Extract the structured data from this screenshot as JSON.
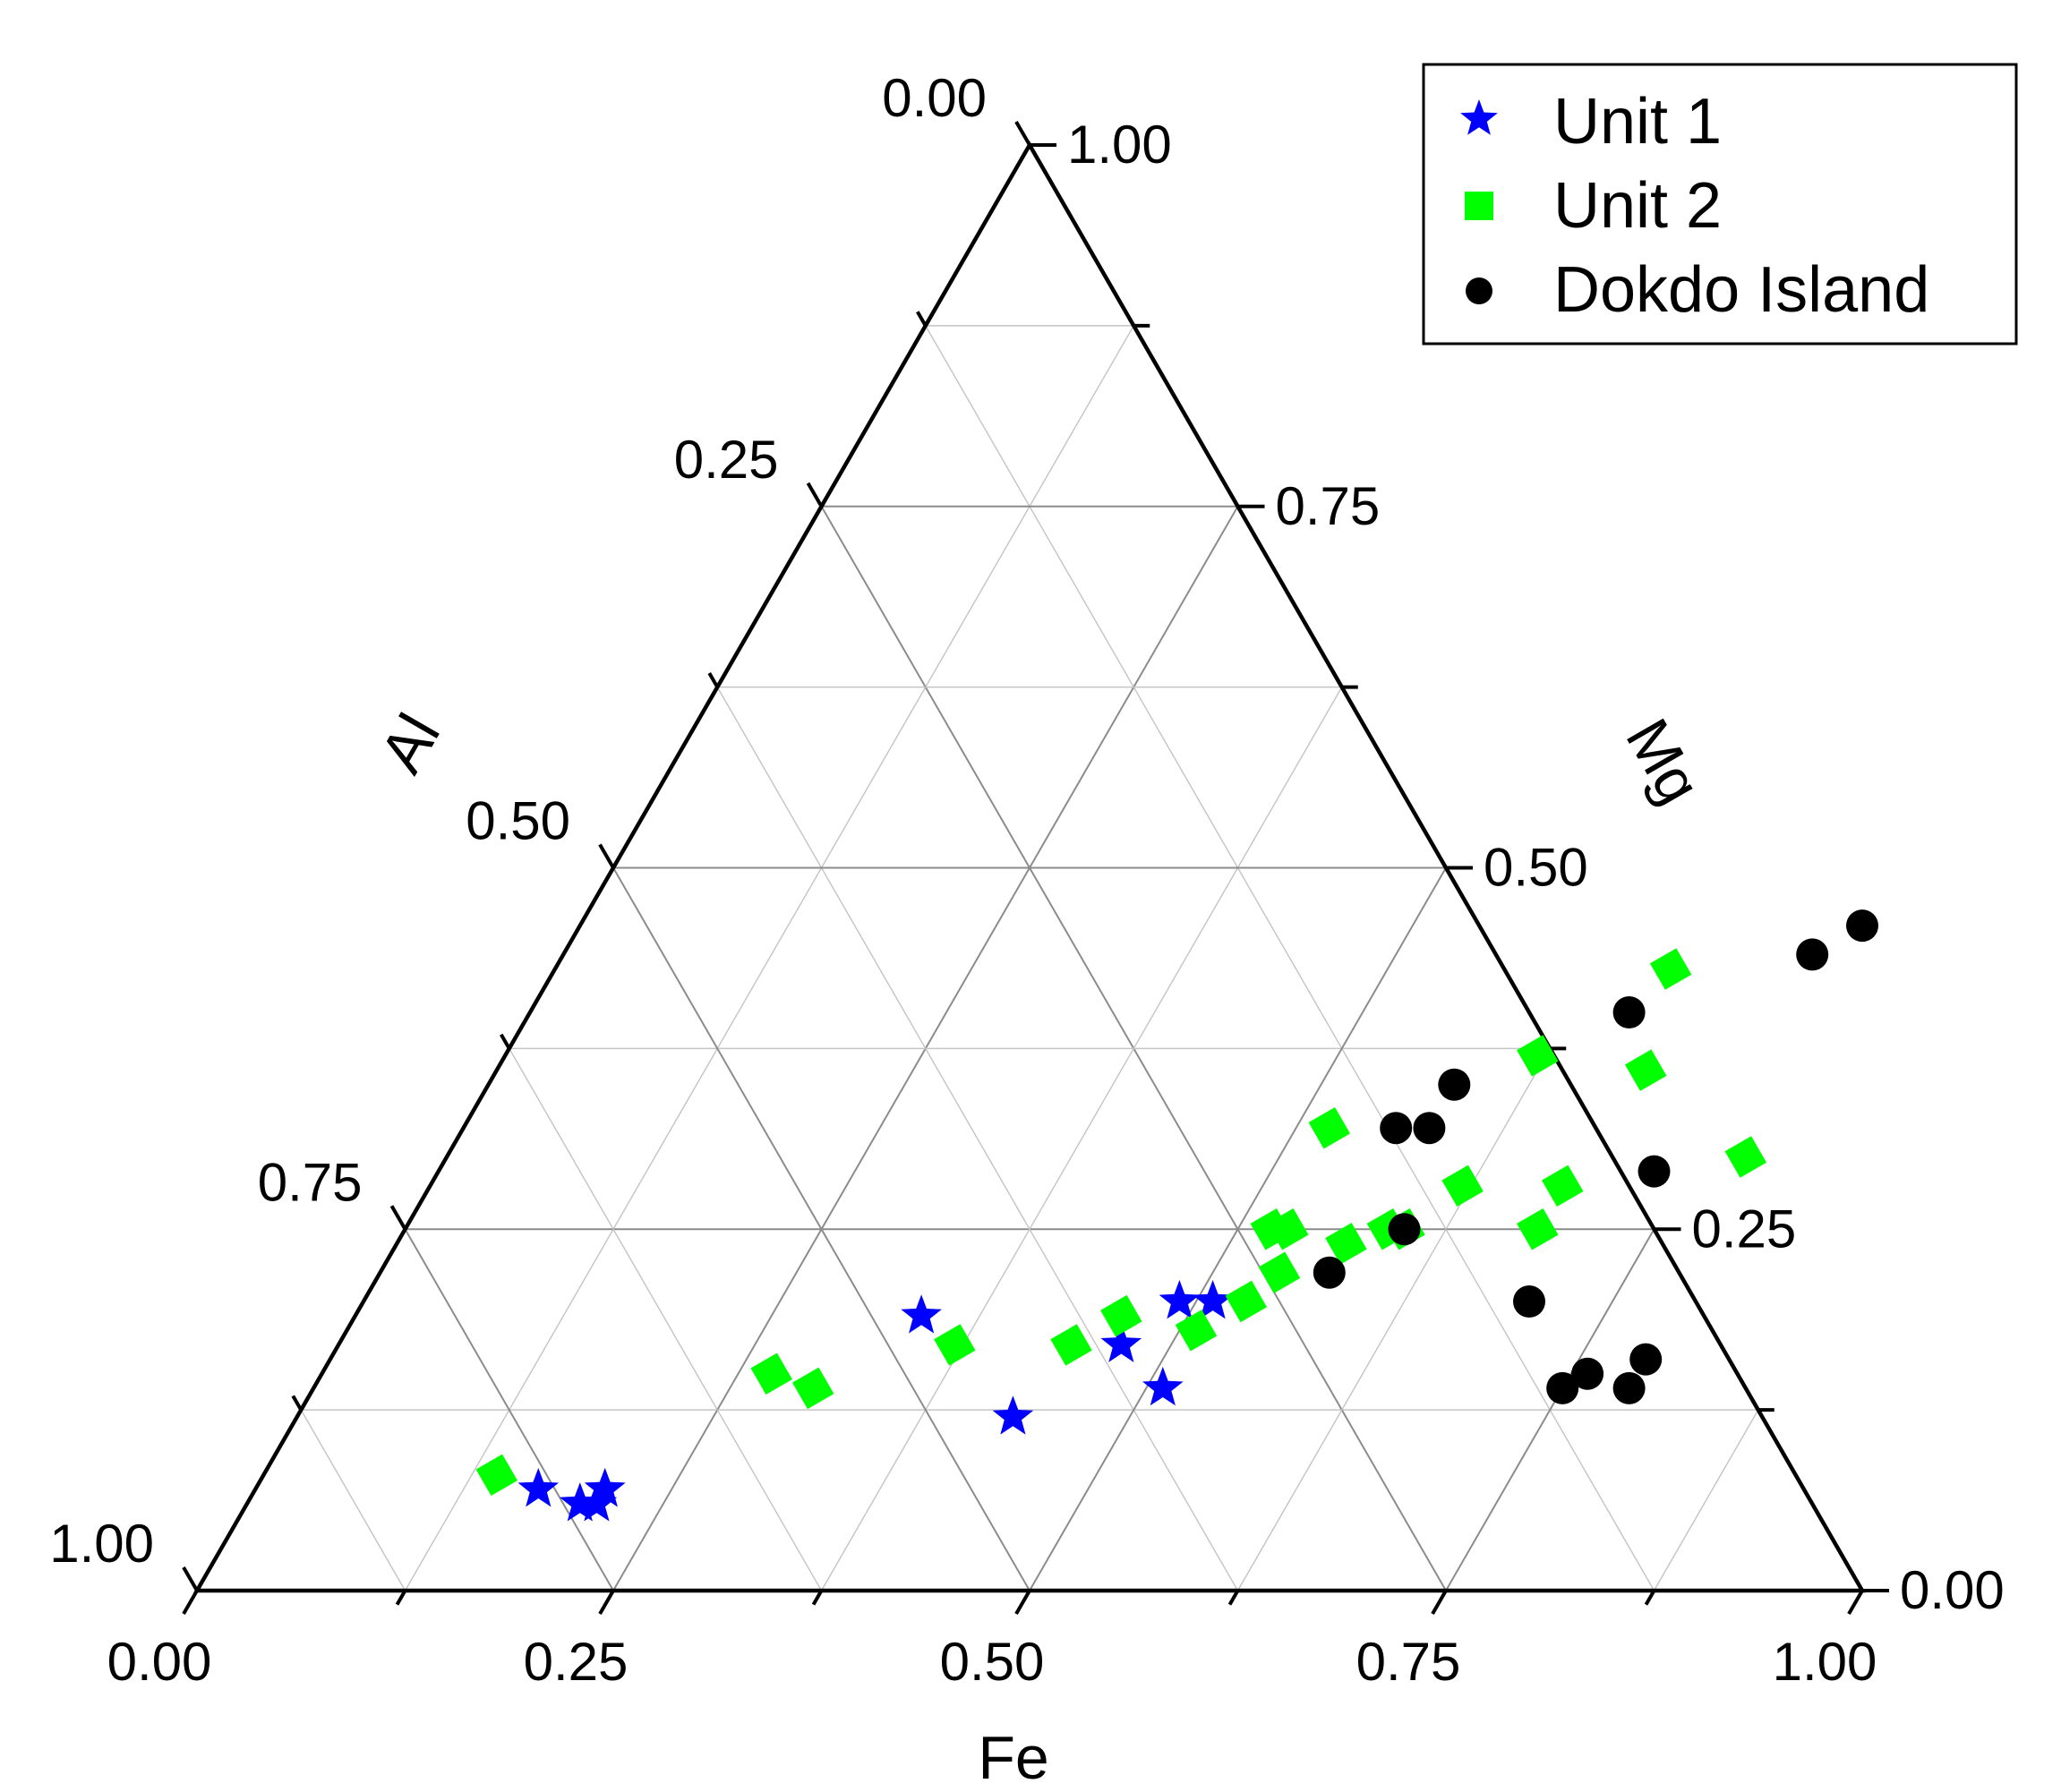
{
  "chart_data": {
    "type": "scatter",
    "subtype": "ternary",
    "grid": true,
    "legend_placement": "top-right",
    "axes": {
      "bottom": {
        "label": "Fe",
        "ticks": [
          "0.00",
          "0.25",
          "0.50",
          "0.75",
          "1.00"
        ]
      },
      "left": {
        "label": "Al",
        "ticks": [
          "0.00",
          "0.25",
          "0.50",
          "0.75",
          "1.00"
        ]
      },
      "right": {
        "label": "Mg",
        "ticks": [
          "1.00",
          "0.75",
          "0.50",
          "0.25",
          "0.00"
        ]
      }
    },
    "series": [
      {
        "name": "Unit 1",
        "marker": "star",
        "color": "#0000ff",
        "points": [
          {
            "Fe": 0.2,
            "Mg": 0.06,
            "Al": 0.74
          },
          {
            "Fe": 0.21,
            "Mg": 0.07,
            "Al": 0.72
          },
          {
            "Fe": 0.21,
            "Mg": 0.06,
            "Al": 0.73
          },
          {
            "Fe": 0.21,
            "Mg": 0.07,
            "Al": 0.72
          },
          {
            "Fe": 0.17,
            "Mg": 0.07,
            "Al": 0.76
          },
          {
            "Fe": 0.34,
            "Mg": 0.19,
            "Al": 0.47
          },
          {
            "Fe": 0.49,
            "Mg": 0.2,
            "Al": 0.31
          },
          {
            "Fe": 0.51,
            "Mg": 0.2,
            "Al": 0.29
          },
          {
            "Fe": 0.47,
            "Mg": 0.17,
            "Al": 0.36
          },
          {
            "Fe": 0.51,
            "Mg": 0.14,
            "Al": 0.35
          },
          {
            "Fe": 0.43,
            "Mg": 0.12,
            "Al": 0.45
          }
        ]
      },
      {
        "name": "Unit 2",
        "marker": "diamond",
        "color": "#00ff00",
        "points": [
          {
            "Fe": 0.14,
            "Mg": 0.08,
            "Al": 0.78
          },
          {
            "Fe": 0.27,
            "Mg": 0.15,
            "Al": 0.58
          },
          {
            "Fe": 0.3,
            "Mg": 0.14,
            "Al": 0.56
          },
          {
            "Fe": 0.37,
            "Mg": 0.17,
            "Al": 0.46
          },
          {
            "Fe": 0.44,
            "Mg": 0.17,
            "Al": 0.39
          },
          {
            "Fe": 0.46,
            "Mg": 0.19,
            "Al": 0.35
          },
          {
            "Fe": 0.51,
            "Mg": 0.18,
            "Al": 0.31
          },
          {
            "Fe": 0.53,
            "Mg": 0.2,
            "Al": 0.27
          },
          {
            "Fe": 0.54,
            "Mg": 0.22,
            "Al": 0.24
          },
          {
            "Fe": 0.52,
            "Mg": 0.25,
            "Al": 0.23
          },
          {
            "Fe": 0.53,
            "Mg": 0.25,
            "Al": 0.22
          },
          {
            "Fe": 0.57,
            "Mg": 0.24,
            "Al": 0.19
          },
          {
            "Fe": 0.59,
            "Mg": 0.25,
            "Al": 0.16
          },
          {
            "Fe": 0.6,
            "Mg": 0.25,
            "Al": 0.15
          },
          {
            "Fe": 0.62,
            "Mg": 0.28,
            "Al": 0.1
          },
          {
            "Fe": 0.52,
            "Mg": 0.32,
            "Al": 0.16
          },
          {
            "Fe": 0.68,
            "Mg": 0.25,
            "Al": 0.07
          },
          {
            "Fe": 0.68,
            "Mg": 0.28,
            "Al": 0.04
          },
          {
            "Fe": 0.78,
            "Mg": 0.3,
            "Al": -0.08
          },
          {
            "Fe": 0.62,
            "Mg": 0.37,
            "Al": 0.01
          },
          {
            "Fe": 0.69,
            "Mg": 0.36,
            "Al": -0.05
          },
          {
            "Fe": 0.67,
            "Mg": 0.43,
            "Al": -0.1
          }
        ]
      },
      {
        "name": "Dokdo Island",
        "marker": "circle",
        "color": "#000000",
        "points": [
          {
            "Fe": 0.77,
            "Mg": 0.46,
            "Al": -0.23
          },
          {
            "Fe": 0.75,
            "Mg": 0.44,
            "Al": -0.19
          },
          {
            "Fe": 0.66,
            "Mg": 0.4,
            "Al": -0.06
          },
          {
            "Fe": 0.58,
            "Mg": 0.35,
            "Al": 0.07
          },
          {
            "Fe": 0.56,
            "Mg": 0.32,
            "Al": 0.12
          },
          {
            "Fe": 0.58,
            "Mg": 0.32,
            "Al": 0.1
          },
          {
            "Fe": 0.73,
            "Mg": 0.29,
            "Al": -0.02
          },
          {
            "Fe": 0.6,
            "Mg": 0.25,
            "Al": 0.15
          },
          {
            "Fe": 0.57,
            "Mg": 0.22,
            "Al": 0.21
          },
          {
            "Fe": 0.7,
            "Mg": 0.2,
            "Al": 0.1
          },
          {
            "Fe": 0.76,
            "Mg": 0.15,
            "Al": 0.09
          },
          {
            "Fe": 0.79,
            "Mg": 0.16,
            "Al": 0.05
          },
          {
            "Fe": 0.75,
            "Mg": 0.14,
            "Al": 0.11
          },
          {
            "Fe": 0.79,
            "Mg": 0.14,
            "Al": 0.07
          }
        ]
      }
    ]
  }
}
